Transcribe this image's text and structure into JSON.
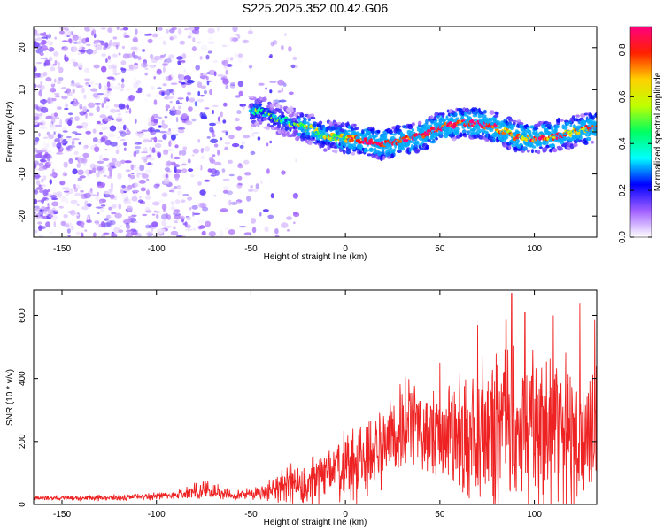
{
  "figure_title": "S225.2025.352.00.42.G06",
  "chart_data": [
    {
      "type": "heatmap",
      "name": "spectrogram",
      "xlabel": "Height of straight line (km)",
      "ylabel": "Frequency (Hz)",
      "xlim": [
        -165,
        133
      ],
      "ylim": [
        -25,
        25
      ],
      "x_ticks": [
        -150,
        -100,
        -50,
        0,
        50,
        100
      ],
      "y_ticks": [
        -20,
        -10,
        0,
        10,
        20
      ],
      "colorbar": {
        "label": "Normalized spectral amplitude",
        "range": [
          0.0,
          0.9
        ],
        "ticks": [
          0.0,
          0.2,
          0.4,
          0.6,
          0.8
        ],
        "stops": [
          "#ffffff",
          "#a060ff",
          "#0000ff",
          "#00ffff",
          "#00ff60",
          "#c0ff00",
          "#ffd000",
          "#ff2000",
          "#ff0080"
        ]
      },
      "ridge": [
        {
          "x": -45,
          "y": 5
        },
        {
          "x": -35,
          "y": 3
        },
        {
          "x": -20,
          "y": 1
        },
        {
          "x": -10,
          "y": -1
        },
        {
          "x": 0,
          "y": -1.5
        },
        {
          "x": 10,
          "y": -2
        },
        {
          "x": 20,
          "y": -3
        },
        {
          "x": 30,
          "y": -2
        },
        {
          "x": 40,
          "y": -1
        },
        {
          "x": 50,
          "y": 1
        },
        {
          "x": 60,
          "y": 2
        },
        {
          "x": 70,
          "y": 2
        },
        {
          "x": 80,
          "y": 1
        },
        {
          "x": 90,
          "y": -1
        },
        {
          "x": 100,
          "y": -1.5
        },
        {
          "x": 110,
          "y": -1
        },
        {
          "x": 120,
          "y": 0
        },
        {
          "x": 130,
          "y": 1
        }
      ]
    },
    {
      "type": "line",
      "name": "snr",
      "xlabel": "Height of straight line (km)",
      "ylabel": "SNR (10 * v/v)",
      "xlim": [
        -165,
        133
      ],
      "ylim": [
        0,
        680
      ],
      "x_ticks": [
        -150,
        -100,
        -50,
        0,
        50,
        100
      ],
      "y_ticks": [
        0,
        200,
        400,
        600
      ],
      "color": "#ee2222",
      "envelope": [
        {
          "x": -165,
          "base": 20,
          "amp": 8
        },
        {
          "x": -120,
          "base": 22,
          "amp": 12
        },
        {
          "x": -90,
          "base": 28,
          "amp": 15
        },
        {
          "x": -75,
          "base": 45,
          "amp": 40
        },
        {
          "x": -60,
          "base": 30,
          "amp": 20
        },
        {
          "x": -45,
          "base": 35,
          "amp": 25
        },
        {
          "x": -30,
          "base": 60,
          "amp": 80
        },
        {
          "x": -15,
          "base": 80,
          "amp": 110
        },
        {
          "x": 0,
          "base": 110,
          "amp": 140
        },
        {
          "x": 15,
          "base": 160,
          "amp": 170
        },
        {
          "x": 30,
          "base": 250,
          "amp": 170
        },
        {
          "x": 45,
          "base": 230,
          "amp": 180
        },
        {
          "x": 60,
          "base": 200,
          "amp": 250
        },
        {
          "x": 75,
          "base": 230,
          "amp": 280
        },
        {
          "x": 90,
          "base": 240,
          "amp": 330
        },
        {
          "x": 105,
          "base": 220,
          "amp": 300
        },
        {
          "x": 120,
          "base": 200,
          "amp": 320
        },
        {
          "x": 133,
          "base": 230,
          "amp": 300
        }
      ],
      "peaks": [
        {
          "x": 50,
          "y": 450
        },
        {
          "x": 70,
          "y": 570
        },
        {
          "x": 85,
          "y": 585
        },
        {
          "x": 88,
          "y": 670
        },
        {
          "x": 95,
          "y": 610
        },
        {
          "x": 110,
          "y": 600
        },
        {
          "x": 124,
          "y": 640
        },
        {
          "x": 132,
          "y": 585
        }
      ]
    }
  ]
}
